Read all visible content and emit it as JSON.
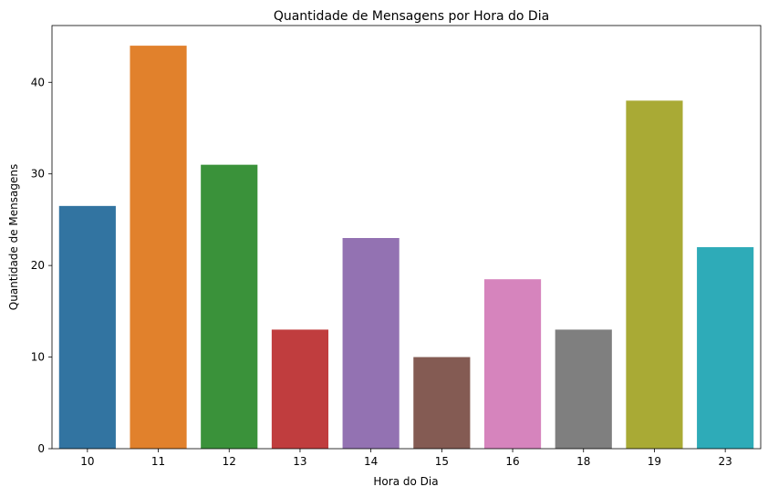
{
  "chart_data": {
    "type": "bar",
    "title": "Quantidade de Mensagens por Hora do Dia",
    "xlabel": "Hora do Dia",
    "ylabel": "Quantidade de Mensagens",
    "categories": [
      "10",
      "11",
      "12",
      "13",
      "14",
      "15",
      "16",
      "18",
      "19",
      "23"
    ],
    "values": [
      26.5,
      44,
      31,
      13,
      23,
      10,
      18.5,
      13,
      38,
      22
    ],
    "colors": [
      "#3274a1",
      "#e1812c",
      "#3a923a",
      "#c03d3e",
      "#9372b2",
      "#845b53",
      "#d684bd",
      "#7f7f7f",
      "#a9aa35",
      "#2eabb8"
    ],
    "ylim": [
      0,
      46.2
    ],
    "yticks": [
      0,
      10,
      20,
      30,
      40
    ],
    "grid": false,
    "legend": "none"
  }
}
